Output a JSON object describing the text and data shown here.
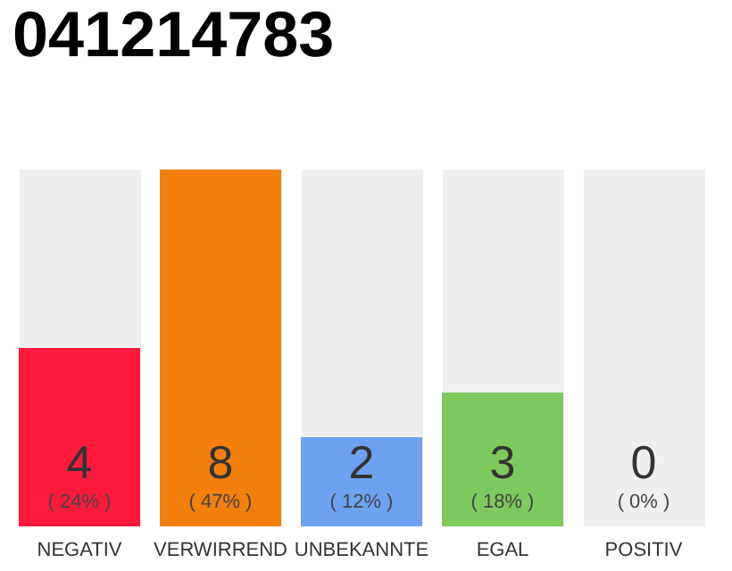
{
  "chart_data": {
    "type": "bar",
    "title": "041214783",
    "categories": [
      "NEGATIV",
      "VERWIRREND",
      "UNBEKANNTE",
      "EGAL",
      "POSITIV"
    ],
    "values": [
      4,
      8,
      2,
      3,
      0
    ],
    "colors": [
      "#ff1a3c",
      "#f27f0c",
      "#6ea2f0",
      "#7dc95e",
      "#c8c8c8"
    ],
    "value_labels": [
      "4\n( 24% )",
      "8\n( 47% )",
      "2\n( 12% )",
      "3\n( 18% )",
      "0\n( 0% )"
    ],
    "grid": false
  }
}
